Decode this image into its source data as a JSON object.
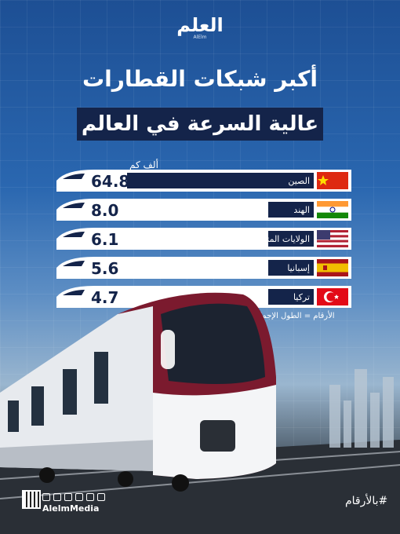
{
  "brand": {
    "logo": "العلم",
    "logo_sub": "AlElm"
  },
  "title_line1": "أكبر شبكات القطارات",
  "title_line2": "عالية السرعة في العالم",
  "unit": "ألف كم",
  "note": "الأرقام = الطول الإجمالي",
  "hashtag": "#بالأرقام",
  "handle": "AlelmMedia",
  "colors": {
    "bar": "#14244a",
    "accent": "#c9223a",
    "card": "#ffffff"
  },
  "chart_data": {
    "type": "bar",
    "orientation": "horizontal",
    "categories": [
      "الصين",
      "الهند",
      "الولايات المتحدة",
      "إسبانيا",
      "تركيا"
    ],
    "values": [
      64.8,
      8.0,
      6.1,
      5.6,
      4.7
    ],
    "value_labels": [
      "64.8",
      "8.0",
      "6.1",
      "5.6",
      "4.7"
    ],
    "flags": [
      "china-flag",
      "india-flag",
      "usa-flag",
      "spain-flag",
      "turkey-flag"
    ]
  }
}
